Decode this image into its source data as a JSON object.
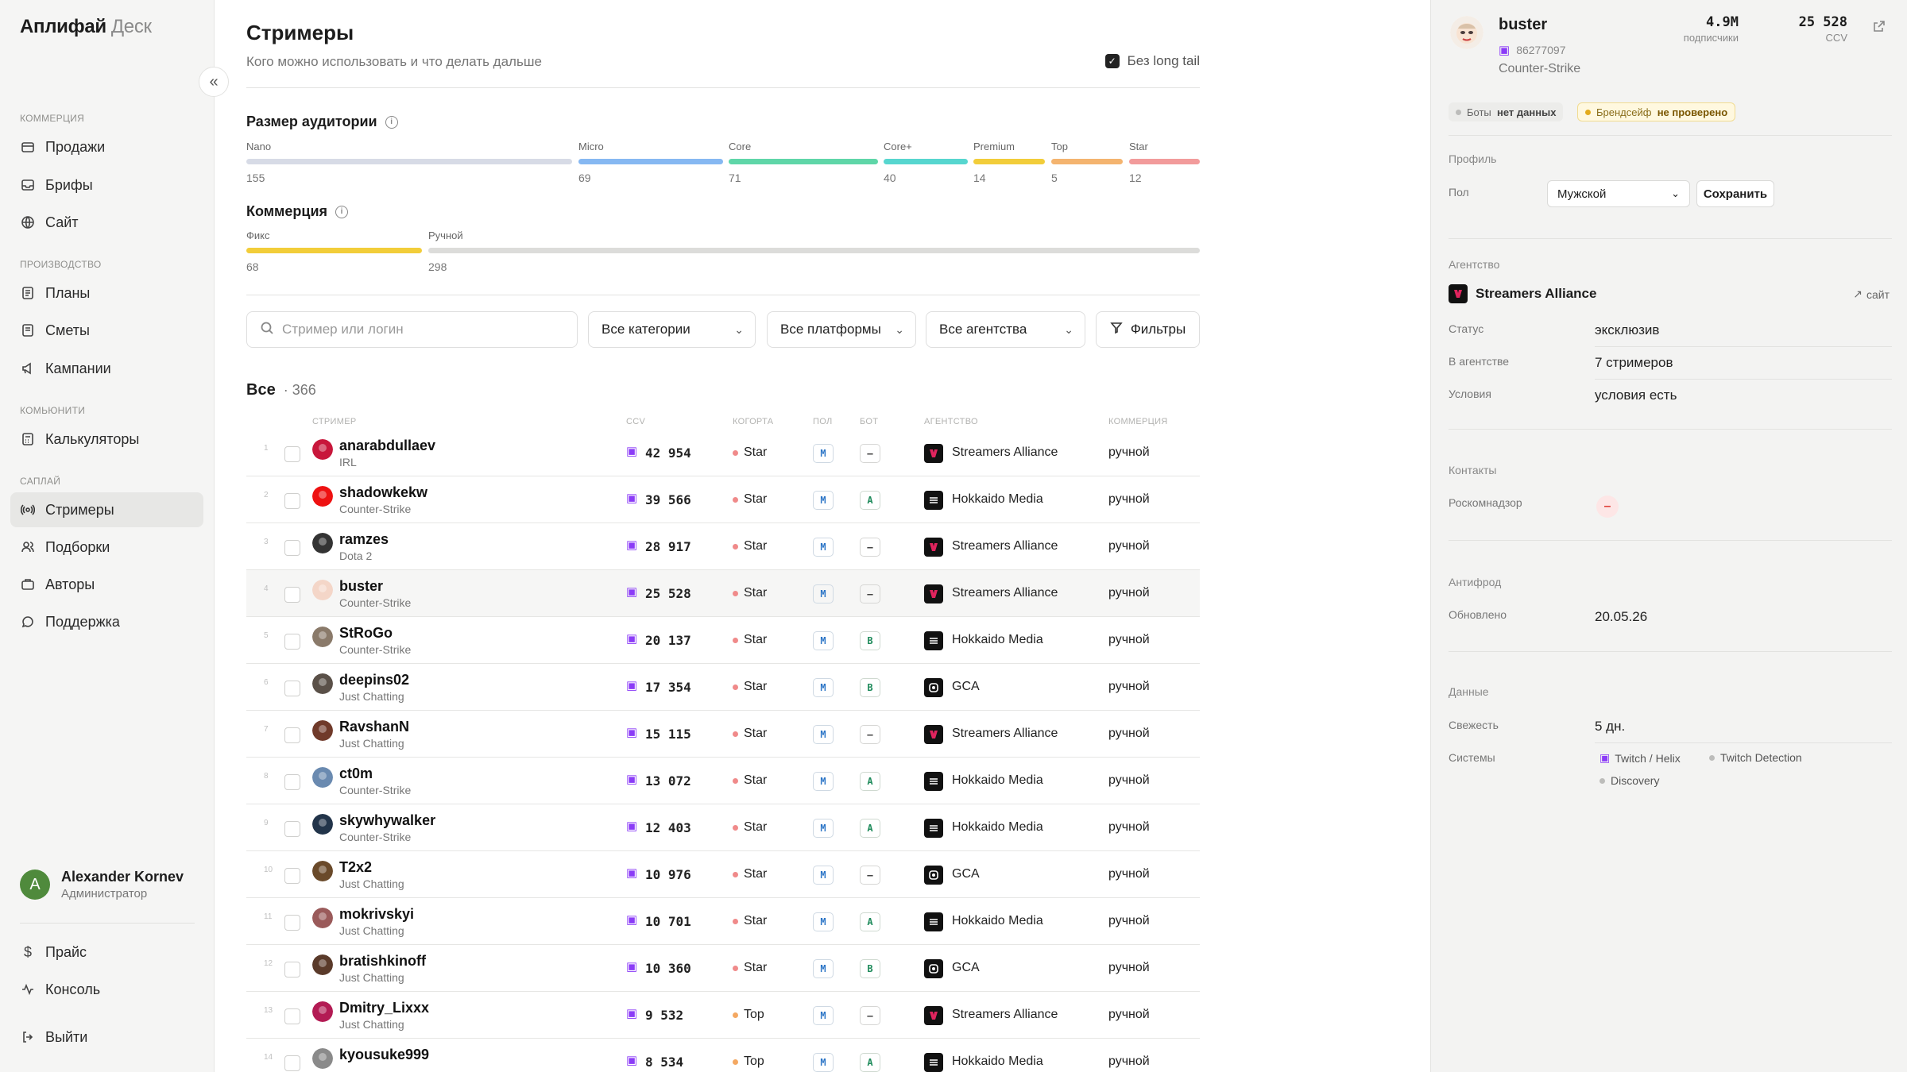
{
  "sidebar": {
    "brand": "Аплифай",
    "brand_sub": "Деск",
    "sections": [
      {
        "label": "КОММЕРЦИЯ",
        "items": [
          "Продажи",
          "Брифы",
          "Сайт"
        ]
      },
      {
        "label": "ПРОИЗВОДСТВО",
        "items": [
          "Планы",
          "Сметы",
          "Кампании"
        ]
      },
      {
        "label": "КОМЬЮНИТИ",
        "items": [
          "Калькуляторы"
        ]
      },
      {
        "label": "САПЛАЙ",
        "items": [
          "Стримеры",
          "Подборки",
          "Авторы",
          "Поддержка"
        ]
      }
    ],
    "user": {
      "initial": "A",
      "name": "Alexander Kornev",
      "role": "Администратор"
    },
    "bottom": [
      "Прайс",
      "Консоль",
      "Выйти"
    ]
  },
  "page": {
    "title": "Стримеры",
    "subtitle": "Кого можно использовать и что делать дальше",
    "long_tail_label": "Без long tail",
    "long_tail_checked": true
  },
  "audience": {
    "title": "Размер аудитории",
    "segments": [
      {
        "label": "Nano",
        "count": "155",
        "color": "#d7dbe6"
      },
      {
        "label": "Micro",
        "count": "69",
        "color": "#86b8f2"
      },
      {
        "label": "Core",
        "count": "71",
        "color": "#5fd6a8"
      },
      {
        "label": "Core+",
        "count": "40",
        "color": "#57d6cf"
      },
      {
        "label": "Premium",
        "count": "14",
        "color": "#f2cd3a"
      },
      {
        "label": "Top",
        "count": "5",
        "color": "#f4b46f"
      },
      {
        "label": "Star",
        "count": "12",
        "color": "#f29b9b"
      }
    ]
  },
  "commerce": {
    "title": "Коммерция",
    "segments": [
      {
        "label": "Фикс",
        "count": "68",
        "color": "#f2cd3a"
      },
      {
        "label": "Ручной",
        "count": "298",
        "color": "#dcdcda"
      }
    ]
  },
  "filters": {
    "search_placeholder": "Стример или логин",
    "categories": "Все категории",
    "platforms": "Все платформы",
    "agencies": "Все агентства",
    "filters_label": "Фильтры"
  },
  "list": {
    "title": "Все",
    "total": "366",
    "columns": [
      "СТРИМЕР",
      "CCV",
      "КОГОРТА",
      "ПОЛ",
      "БОТ",
      "АГЕНТСТВО",
      "КОММЕРЦИЯ"
    ],
    "rows": [
      {
        "idx": "1",
        "name": "anarabdullaev",
        "category": "IRL",
        "ccv": "42 954",
        "cohort": "Star",
        "sex": "М",
        "bot": "—",
        "agency": "Streamers Alliance",
        "commerce": "ручной"
      },
      {
        "idx": "2",
        "name": "shadowkekw",
        "category": "Counter-Strike",
        "ccv": "39 566",
        "cohort": "Star",
        "sex": "М",
        "bot": "A",
        "agency": "Hokkaido Media",
        "commerce": "ручной"
      },
      {
        "idx": "3",
        "name": "ramzes",
        "category": "Dota 2",
        "ccv": "28 917",
        "cohort": "Star",
        "sex": "М",
        "bot": "—",
        "agency": "Streamers Alliance",
        "commerce": "ручной"
      },
      {
        "idx": "4",
        "name": "buster",
        "category": "Counter-Strike",
        "ccv": "25 528",
        "cohort": "Star",
        "sex": "М",
        "bot": "—",
        "agency": "Streamers Alliance",
        "commerce": "ручной"
      },
      {
        "idx": "5",
        "name": "StRoGo",
        "category": "Counter-Strike",
        "ccv": "20 137",
        "cohort": "Star",
        "sex": "М",
        "bot": "B",
        "agency": "Hokkaido Media",
        "commerce": "ручной"
      },
      {
        "idx": "6",
        "name": "deepins02",
        "category": "Just Chatting",
        "ccv": "17 354",
        "cohort": "Star",
        "sex": "М",
        "bot": "B",
        "agency": "GCA",
        "commerce": "ручной"
      },
      {
        "idx": "7",
        "name": "RavshanN",
        "category": "Just Chatting",
        "ccv": "15 115",
        "cohort": "Star",
        "sex": "М",
        "bot": "—",
        "agency": "Streamers Alliance",
        "commerce": "ручной"
      },
      {
        "idx": "8",
        "name": "ct0m",
        "category": "Counter-Strike",
        "ccv": "13 072",
        "cohort": "Star",
        "sex": "М",
        "bot": "A",
        "agency": "Hokkaido Media",
        "commerce": "ручной"
      },
      {
        "idx": "9",
        "name": "skywhywalker",
        "category": "Counter-Strike",
        "ccv": "12 403",
        "cohort": "Star",
        "sex": "М",
        "bot": "A",
        "agency": "Hokkaido Media",
        "commerce": "ручной"
      },
      {
        "idx": "10",
        "name": "T2x2",
        "category": "Just Chatting",
        "ccv": "10 976",
        "cohort": "Star",
        "sex": "М",
        "bot": "—",
        "agency": "GCA",
        "commerce": "ручной"
      },
      {
        "idx": "11",
        "name": "mokrivskyi",
        "category": "Just Chatting",
        "ccv": "10 701",
        "cohort": "Star",
        "sex": "М",
        "bot": "A",
        "agency": "Hokkaido Media",
        "commerce": "ручной"
      },
      {
        "idx": "12",
        "name": "bratishkinoff",
        "category": "Just Chatting",
        "ccv": "10 360",
        "cohort": "Star",
        "sex": "М",
        "bot": "B",
        "agency": "GCA",
        "commerce": "ручной"
      },
      {
        "idx": "13",
        "name": "Dmitry_Lixxx",
        "category": "Just Chatting",
        "ccv": "9 532",
        "cohort": "Top",
        "sex": "М",
        "bot": "—",
        "agency": "Streamers Alliance",
        "commerce": "ручной"
      },
      {
        "idx": "14",
        "name": "kyousuke999",
        "category": "",
        "ccv": "8 534",
        "cohort": "Top",
        "sex": "М",
        "bot": "A",
        "agency": "Hokkaido Media",
        "commerce": "ручной"
      }
    ]
  },
  "detail": {
    "name": "buster",
    "id": "86277097",
    "game": "Counter-Strike",
    "followers_value": "4.9M",
    "followers_label": "подписчики",
    "ccv_value": "25 528",
    "ccv_label": "CCV",
    "bots_label": "Боты",
    "bots_value": "нет данных",
    "brand_label": "Брендсейф",
    "brand_value": "не проверено",
    "profile_section": "Профиль",
    "sex_key": "Пол",
    "sex_value": "Мужской",
    "save_label": "Сохранить",
    "agency_section": "Агентство",
    "agency_name": "Streamers Alliance",
    "agency_site": "сайт",
    "status_key": "Статус",
    "status_value": "эксклюзив",
    "in_agency_key": "В агентстве",
    "in_agency_value": "7 стримеров",
    "terms_key": "Условия",
    "terms_value": "условия есть",
    "contacts_section": "Контакты",
    "rkn_key": "Роскомнадзор",
    "antifraud_section": "Антифрод",
    "updated_key": "Обновлено",
    "updated_value": "20.05.26",
    "data_section": "Данные",
    "fresh_key": "Свежесть",
    "fresh_value": "5 дн.",
    "systems_key": "Системы",
    "systems": [
      "Twitch / Helix",
      "Twitch Detection",
      "Discovery"
    ]
  },
  "colors": {
    "star": "#f08a8a",
    "top": "#f4a862",
    "twitch": "#8b3cf7",
    "accent_yellow": "#f2cd3a"
  }
}
